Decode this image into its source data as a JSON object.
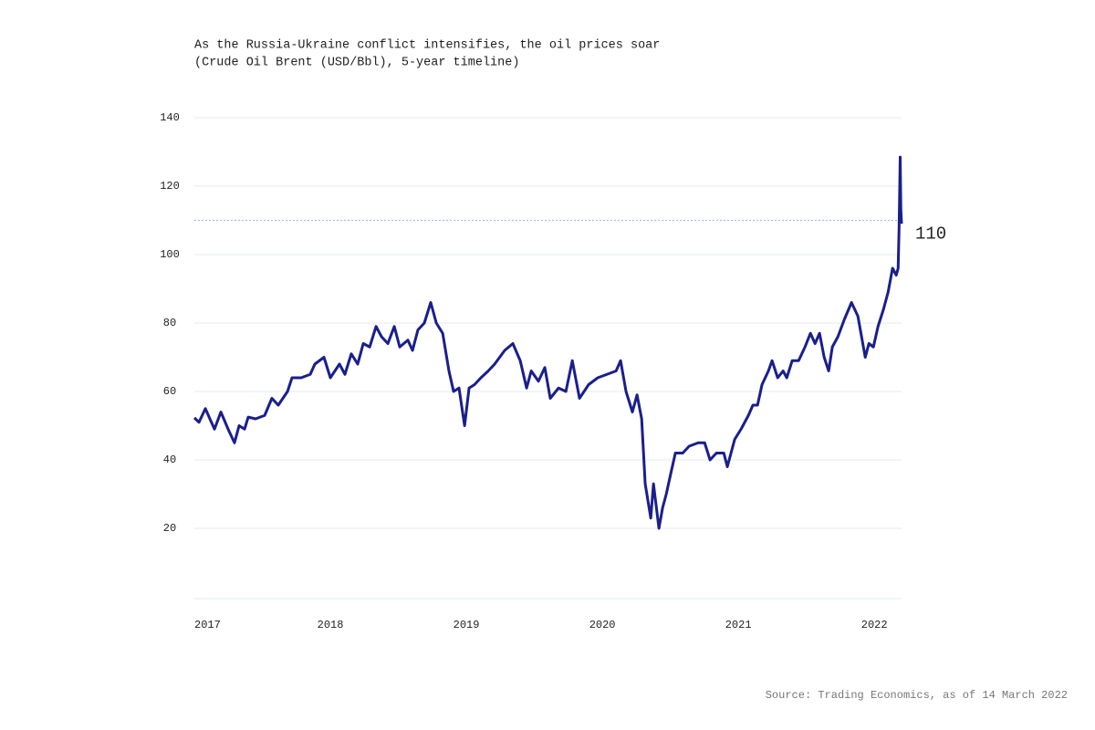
{
  "chart_data": {
    "type": "line",
    "title": "As the Russia-Ukraine conflict intensifies, the oil prices soar",
    "subtitle": "(Crude Oil Brent (USD/Bbl), 5-year timeline)",
    "source": "Source: Trading Economics, as of 14 March 2022",
    "annotation": {
      "value": 110,
      "label": "110"
    },
    "xlim": [
      2017,
      2022.2
    ],
    "xticks": [
      2017,
      2018,
      2019,
      2020,
      2021,
      2022
    ],
    "ylim": [
      0,
      140
    ],
    "yticks": [
      20,
      40,
      60,
      80,
      100,
      120,
      140
    ],
    "grid": true,
    "x": [
      2017.0,
      2017.034,
      2017.081,
      2017.114,
      2017.148,
      2017.195,
      2017.248,
      2017.295,
      2017.329,
      2017.369,
      2017.396,
      2017.45,
      2017.517,
      2017.57,
      2017.617,
      2017.685,
      2017.718,
      2017.785,
      2017.852,
      2017.886,
      2017.953,
      2018.0,
      2018.067,
      2018.107,
      2018.154,
      2018.201,
      2018.242,
      2018.289,
      2018.336,
      2018.376,
      2018.423,
      2018.47,
      2018.51,
      2018.57,
      2018.604,
      2018.644,
      2018.691,
      2018.738,
      2018.779,
      2018.826,
      2018.872,
      2018.906,
      2018.946,
      2018.987,
      2019.02,
      2019.06,
      2019.107,
      2019.161,
      2019.208,
      2019.282,
      2019.342,
      2019.396,
      2019.443,
      2019.477,
      2019.53,
      2019.577,
      2019.617,
      2019.678,
      2019.732,
      2019.779,
      2019.832,
      2019.899,
      2019.966,
      2020.034,
      2020.101,
      2020.134,
      2020.174,
      2020.221,
      2020.255,
      2020.289,
      2020.315,
      2020.356,
      2020.376,
      2020.416,
      2020.443,
      2020.47,
      2020.503,
      2020.537,
      2020.591,
      2020.638,
      2020.705,
      2020.752,
      2020.792,
      2020.839,
      2020.893,
      2020.919,
      2020.973,
      2021.02,
      2021.074,
      2021.107,
      2021.141,
      2021.174,
      2021.221,
      2021.248,
      2021.289,
      2021.329,
      2021.356,
      2021.396,
      2021.443,
      2021.49,
      2021.53,
      2021.564,
      2021.597,
      2021.631,
      2021.664,
      2021.691,
      2021.732,
      2021.779,
      2021.832,
      2021.879,
      2021.933,
      2021.96,
      2021.993,
      2022.027,
      2022.067,
      2022.101,
      2022.134,
      2022.161,
      2022.175,
      2022.182,
      2022.19,
      2022.195,
      2022.2
    ],
    "series": [
      {
        "name": "Crude Oil Brent",
        "color": "#1a1f8c",
        "values": [
          52.3,
          51,
          55,
          52,
          49,
          54,
          49,
          45,
          50,
          49,
          52.5,
          52,
          53,
          58,
          56,
          60,
          64,
          64,
          65,
          68,
          70,
          64,
          68,
          65,
          71,
          68,
          74,
          73,
          79,
          76,
          74,
          79,
          73,
          75,
          72,
          78,
          80,
          86,
          80,
          77,
          66,
          60,
          61,
          50,
          61,
          62,
          64,
          66,
          68,
          72,
          74,
          69,
          61,
          66,
          63,
          67,
          58,
          61,
          60,
          69,
          58,
          62,
          64,
          65,
          66,
          69,
          60,
          54,
          59,
          52,
          33,
          23,
          33,
          20,
          26,
          30,
          36,
          42,
          42,
          44,
          45,
          45,
          40,
          42,
          42,
          38,
          46,
          49,
          53,
          56,
          56,
          62,
          66,
          69,
          64,
          66,
          64,
          69,
          69,
          73,
          77,
          74,
          77,
          70,
          66,
          73,
          76,
          81,
          86,
          82,
          70,
          74,
          73,
          79,
          84,
          89,
          96,
          94,
          96,
          108,
          128.5,
          113,
          109
        ]
      }
    ]
  }
}
